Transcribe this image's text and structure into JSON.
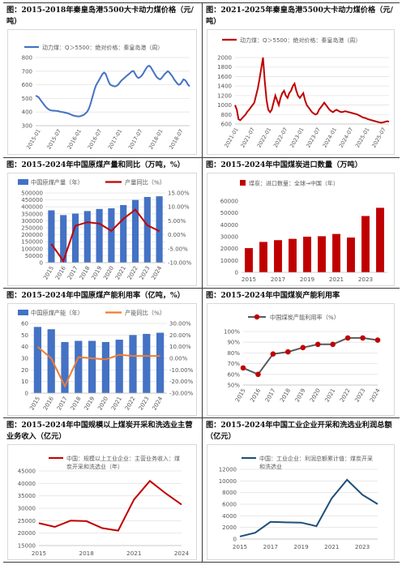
{
  "panels": [
    {
      "title": "图：2015-2018年秦皇岛港5500大卡动力煤价格（元/吨）"
    },
    {
      "title": "图：2021-2025年秦皇岛港5500大卡动力煤价格（元/吨）"
    },
    {
      "title": "图：2015-2024年中国原煤产量和同比（万吨，%）"
    },
    {
      "title": "图：2015-2024年中国煤炭进口数量（万吨）"
    },
    {
      "title": "图：2015-2024年中国原煤产能利用率（亿吨，%）"
    },
    {
      "title": "图：2015-2024年中国煤炭产能利用率"
    },
    {
      "title": "图：2015-2024年中国规模以上煤炭开采和洗选业主营业务收入（亿元）"
    },
    {
      "title": "图：2015-2024年中国工业企业开采和洗选业利润总额（亿元）"
    }
  ],
  "colors": {
    "blue": "#4472C4",
    "red": "#C00000",
    "orange": "#ED7D31",
    "darkgray": "#595959",
    "navy": "#1F4E79"
  },
  "chart_data": [
    {
      "type": "line",
      "legend": "动力煤：Q＞5500：绝对价格：秦皇岛港（周）",
      "x_labels": [
        "2015-01",
        "2015-07",
        "2016-01",
        "2016-07",
        "2017-01",
        "2017-07",
        "2018-01",
        "2018-07"
      ],
      "ylim": [
        300,
        800
      ],
      "y_ticks": [
        300,
        400,
        500,
        600,
        700,
        800
      ],
      "values": [
        520,
        515,
        508,
        490,
        475,
        460,
        445,
        432,
        422,
        415,
        412,
        410,
        410,
        409,
        408,
        405,
        402,
        400,
        398,
        395,
        392,
        390,
        385,
        380,
        375,
        372,
        370,
        368,
        368,
        370,
        375,
        380,
        390,
        400,
        420,
        450,
        490,
        530,
        570,
        600,
        620,
        640,
        660,
        680,
        690,
        680,
        650,
        620,
        600,
        595,
        590,
        588,
        592,
        600,
        615,
        630,
        640,
        650,
        660,
        670,
        680,
        690,
        700,
        700,
        680,
        660,
        650,
        655,
        665,
        680,
        700,
        720,
        735,
        740,
        730,
        710,
        690,
        670,
        655,
        645,
        640,
        650,
        665,
        680,
        690,
        700,
        690,
        675,
        660,
        640,
        625,
        610,
        600,
        605,
        620,
        640,
        635,
        620,
        600,
        588
      ]
    },
    {
      "type": "line",
      "legend": "动力煤：Q＞5500：绝对价格：秦皇岛港（周）",
      "x_labels": [
        "2021-01",
        "2021-07",
        "2022-01",
        "2022-07",
        "2023-01",
        "2023-07",
        "2024-01",
        "2024-07",
        "2025-01",
        "2025-07"
      ],
      "ylim": [
        600,
        2000
      ],
      "y_ticks": [
        600,
        800,
        1000,
        1200,
        1400,
        1600,
        1800,
        2000
      ],
      "values": [
        1000,
        900,
        700,
        680,
        720,
        760,
        800,
        860,
        900,
        950,
        1000,
        1050,
        1200,
        1350,
        1550,
        1780,
        2000,
        1500,
        1100,
        900,
        850,
        900,
        1050,
        1200,
        1100,
        1000,
        1150,
        1250,
        1300,
        1200,
        1150,
        1250,
        1300,
        1400,
        1450,
        1300,
        1200,
        1150,
        1200,
        1250,
        1100,
        1000,
        950,
        900,
        850,
        820,
        800,
        820,
        900,
        950,
        1000,
        1050,
        1000,
        950,
        900,
        870,
        850,
        880,
        900,
        880,
        860,
        850,
        860,
        870,
        860,
        850,
        840,
        830,
        820,
        810,
        800,
        780,
        760,
        740,
        730,
        720,
        700,
        690,
        680,
        670,
        660,
        650,
        640,
        630,
        630,
        640,
        650,
        660,
        650
      ]
    },
    {
      "type": "bar-line",
      "categories": [
        "2015",
        "2016",
        "2017",
        "2018",
        "2019",
        "2020",
        "2021",
        "2022",
        "2023",
        "2024"
      ],
      "series": [
        {
          "name": "中国原煤产量（年）",
          "type": "bar",
          "axis": "left",
          "values": [
            375000,
            341000,
            352000,
            370000,
            385000,
            390000,
            413000,
            450000,
            471000,
            476000
          ]
        },
        {
          "name": "产量同比（%）",
          "type": "line",
          "axis": "right",
          "values": [
            -3.3,
            -9.4,
            3.2,
            4.5,
            4.0,
            1.4,
            5.7,
            9.0,
            3.4,
            1.3
          ]
        }
      ],
      "y_left": {
        "lim": [
          0,
          500000
        ],
        "ticks": [
          "0",
          "50000",
          "100000",
          "150000",
          "200000",
          "250000",
          "300000",
          "350000",
          "400000",
          "450000",
          "500000"
        ]
      },
      "y_right": {
        "lim": [
          -10,
          15
        ],
        "ticks": [
          "-10.00%",
          "-5.00%",
          "0.00%",
          "5.00%",
          "10.00%",
          "15.00%"
        ]
      }
    },
    {
      "type": "bar",
      "legend": "煤炭：进口数量：全球→中国（年）",
      "categories": [
        "2015",
        "2016",
        "2017",
        "2018",
        "2019",
        "2020",
        "2021",
        "2022",
        "2023",
        "2024"
      ],
      "x_labels": [
        "2015",
        "2017",
        "2019",
        "2021",
        "2023"
      ],
      "values": [
        20400,
        25600,
        27100,
        28200,
        30000,
        30400,
        32300,
        29300,
        47400,
        54300
      ],
      "ylim": [
        0,
        60000
      ],
      "y_ticks": [
        "0",
        "10000",
        "20000",
        "30000",
        "40000",
        "50000",
        "60000"
      ]
    },
    {
      "type": "bar-line",
      "categories": [
        "2015",
        "2016",
        "2017",
        "2018",
        "2019",
        "2020",
        "2021",
        "2022",
        "2023",
        "2024"
      ],
      "series": [
        {
          "name": "中国原煤产能（年）",
          "type": "bar",
          "axis": "left",
          "values": [
            57,
            55,
            44,
            45,
            45,
            44,
            46,
            50,
            51,
            52
          ]
        },
        {
          "name": "产能同比（%）",
          "type": "line",
          "axis": "right",
          "values": [
            10,
            0,
            -24,
            1,
            0,
            -1,
            3,
            2,
            2,
            2
          ]
        }
      ],
      "y_left": {
        "lim": [
          0,
          60
        ],
        "ticks": [
          "0",
          "10",
          "20",
          "30",
          "40",
          "50",
          "60"
        ]
      },
      "y_right": {
        "lim": [
          -30,
          30
        ],
        "ticks": [
          "-30.00%",
          "-20.00%",
          "-10.00%",
          "0.00%",
          "10.00%",
          "20.00%",
          "30.00%"
        ]
      }
    },
    {
      "type": "line",
      "legend": "中国煤炭产能利用率（%）",
      "categories": [
        "2015",
        "2016",
        "2017",
        "2018",
        "2019",
        "2020",
        "2021",
        "2022",
        "2023",
        "2024"
      ],
      "values": [
        66,
        60,
        79,
        81,
        85,
        88,
        88,
        94,
        94,
        92
      ],
      "ylim": [
        50,
        100
      ],
      "y_ticks": [
        "50%",
        "60%",
        "70%",
        "80%",
        "90%",
        "100%"
      ]
    },
    {
      "type": "line",
      "legend": "中国：规模以上工业企业：主营业务收入：煤炭开采和洗选业（年）",
      "categories": [
        "2015",
        "2016",
        "2017",
        "2018",
        "2019",
        "2020",
        "2021",
        "2022",
        "2023",
        "2024"
      ],
      "x_labels": [
        "2015",
        "2018",
        "2021",
        "2024"
      ],
      "values": [
        24000,
        22500,
        25000,
        24800,
        22000,
        21000,
        33500,
        41000,
        36000,
        31500
      ],
      "ylim": [
        15000,
        45000
      ],
      "y_ticks": [
        "15000",
        "20000",
        "25000",
        "30000",
        "35000",
        "40000",
        "45000"
      ]
    },
    {
      "type": "line",
      "legend": "中国：工业企业：利润总额累计值：煤炭开采和洗选业",
      "categories": [
        "2015",
        "2016",
        "2017",
        "2018",
        "2019",
        "2020",
        "2021",
        "2022",
        "2023",
        "2024"
      ],
      "x_labels": [
        "2015",
        "2017",
        "2019",
        "2021",
        "2023"
      ],
      "values": [
        440,
        1090,
        2960,
        2870,
        2830,
        2220,
        7020,
        10200,
        7630,
        6010
      ],
      "ylim": [
        0,
        12000
      ],
      "y_ticks": [
        "0",
        "2000",
        "4000",
        "6000",
        "8000",
        "10000",
        "12000"
      ]
    }
  ]
}
